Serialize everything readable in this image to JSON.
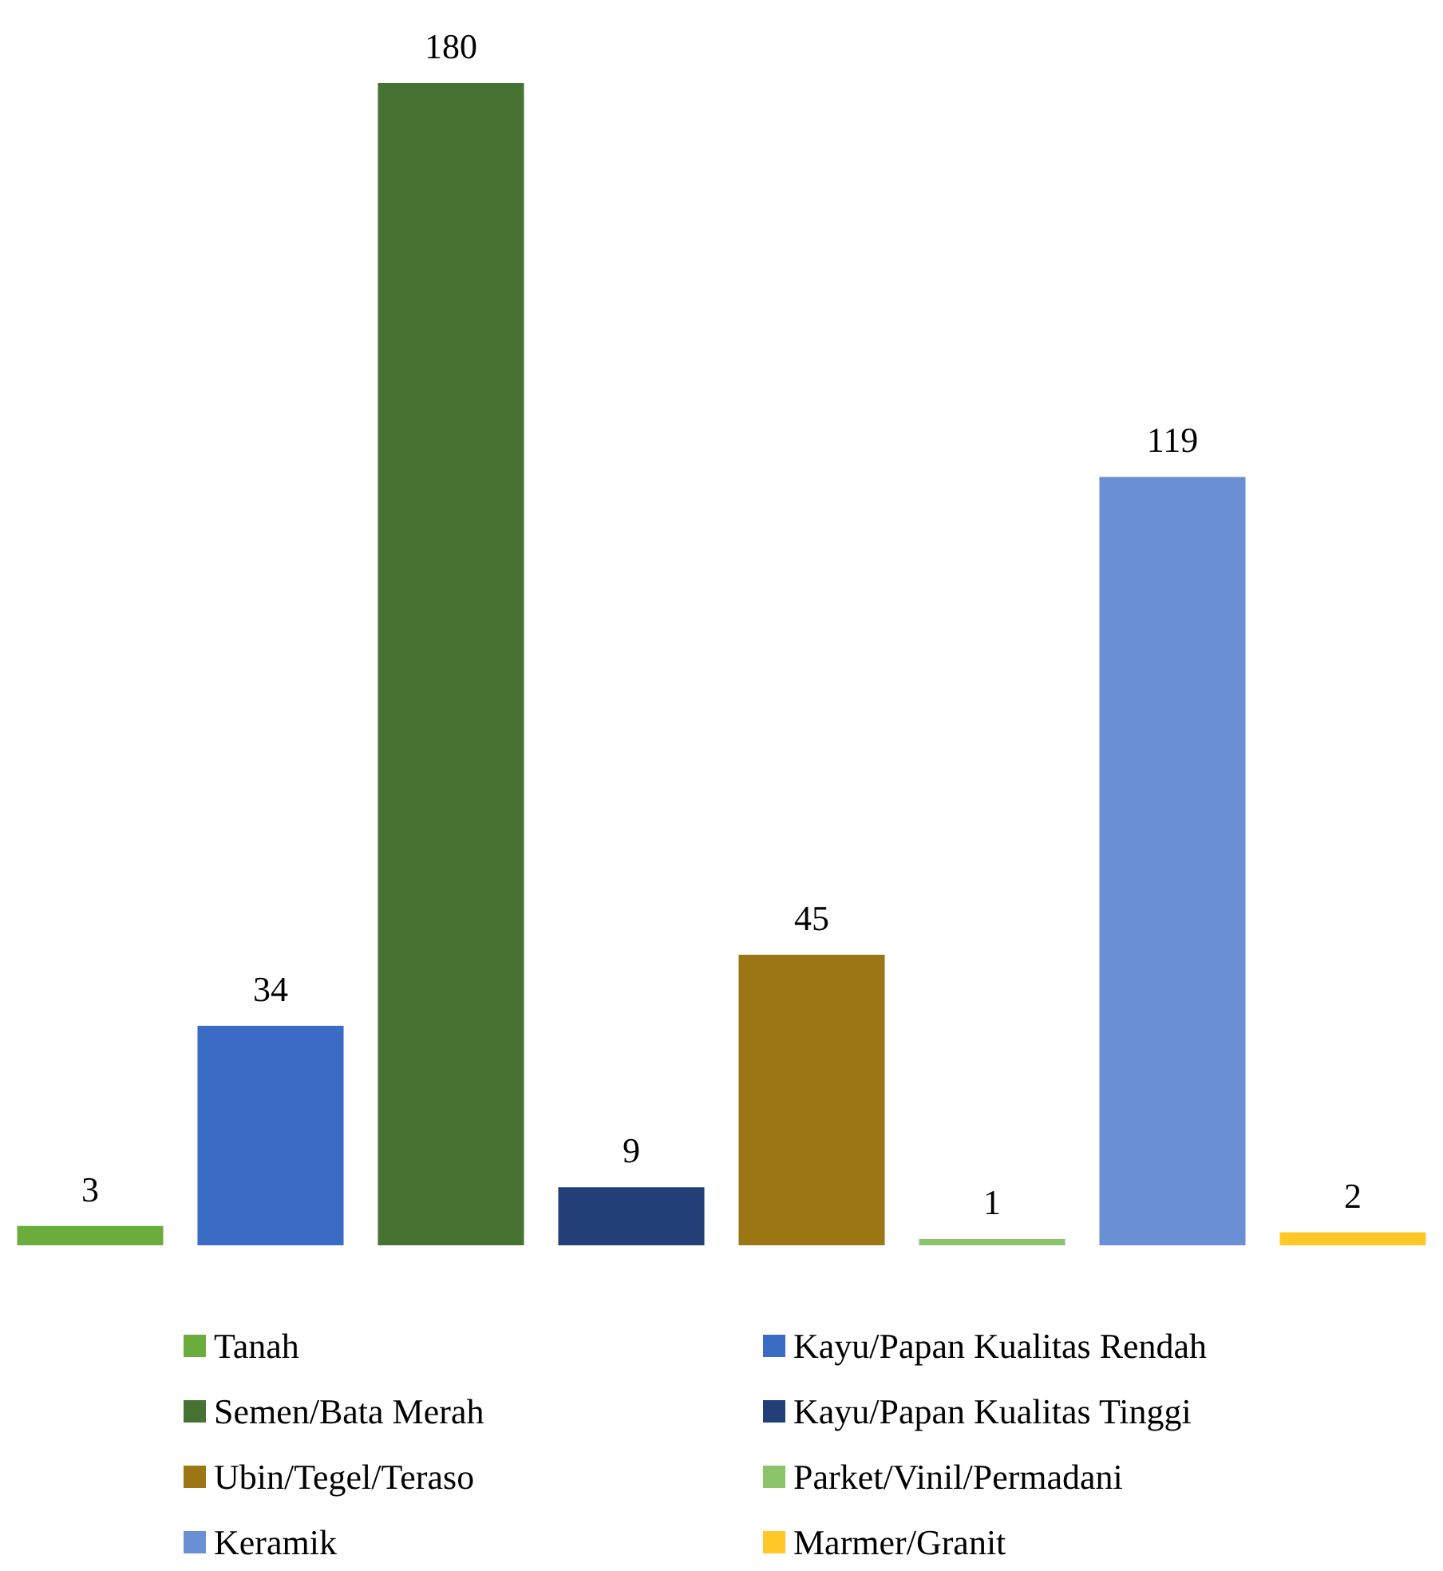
{
  "chart_data": {
    "type": "bar",
    "stacked": true,
    "data_labels": true,
    "legend": "bottom",
    "categories": [
      null,
      null,
      null,
      null,
      null,
      null,
      null,
      null
    ],
    "series": [
      {
        "name": "Tanah",
        "color": "#6aad3d",
        "values": [
          3,
          null,
          null,
          null,
          null,
          null,
          null,
          null
        ]
      },
      {
        "name": "Kayu/Papan Kualitas Rendah",
        "color": "#3a6cc6",
        "values": [
          null,
          34,
          null,
          null,
          null,
          null,
          null,
          null
        ]
      },
      {
        "name": "Semen/Bata Merah",
        "color": "#467232",
        "values": [
          null,
          null,
          180,
          null,
          null,
          null,
          null,
          null
        ]
      },
      {
        "name": "Kayu/Papan Kualitas Tinggi",
        "color": "#233f78",
        "values": [
          null,
          null,
          null,
          9,
          null,
          null,
          null,
          null
        ]
      },
      {
        "name": "Ubin/Tegel/Teraso",
        "color": "#9c7614",
        "values": [
          null,
          null,
          null,
          null,
          45,
          null,
          null,
          null
        ]
      },
      {
        "name": "Parket/Vinil/Permadani",
        "color": "#8cc46a",
        "values": [
          null,
          null,
          null,
          null,
          null,
          1,
          null,
          null
        ]
      },
      {
        "name": "Keramik",
        "color": "#6a8fd4",
        "values": [
          null,
          null,
          null,
          null,
          null,
          null,
          119,
          null
        ]
      },
      {
        "name": "Marmer/Granit",
        "color": "#ffc826",
        "values": [
          null,
          null,
          null,
          null,
          null,
          null,
          null,
          2
        ]
      }
    ]
  }
}
